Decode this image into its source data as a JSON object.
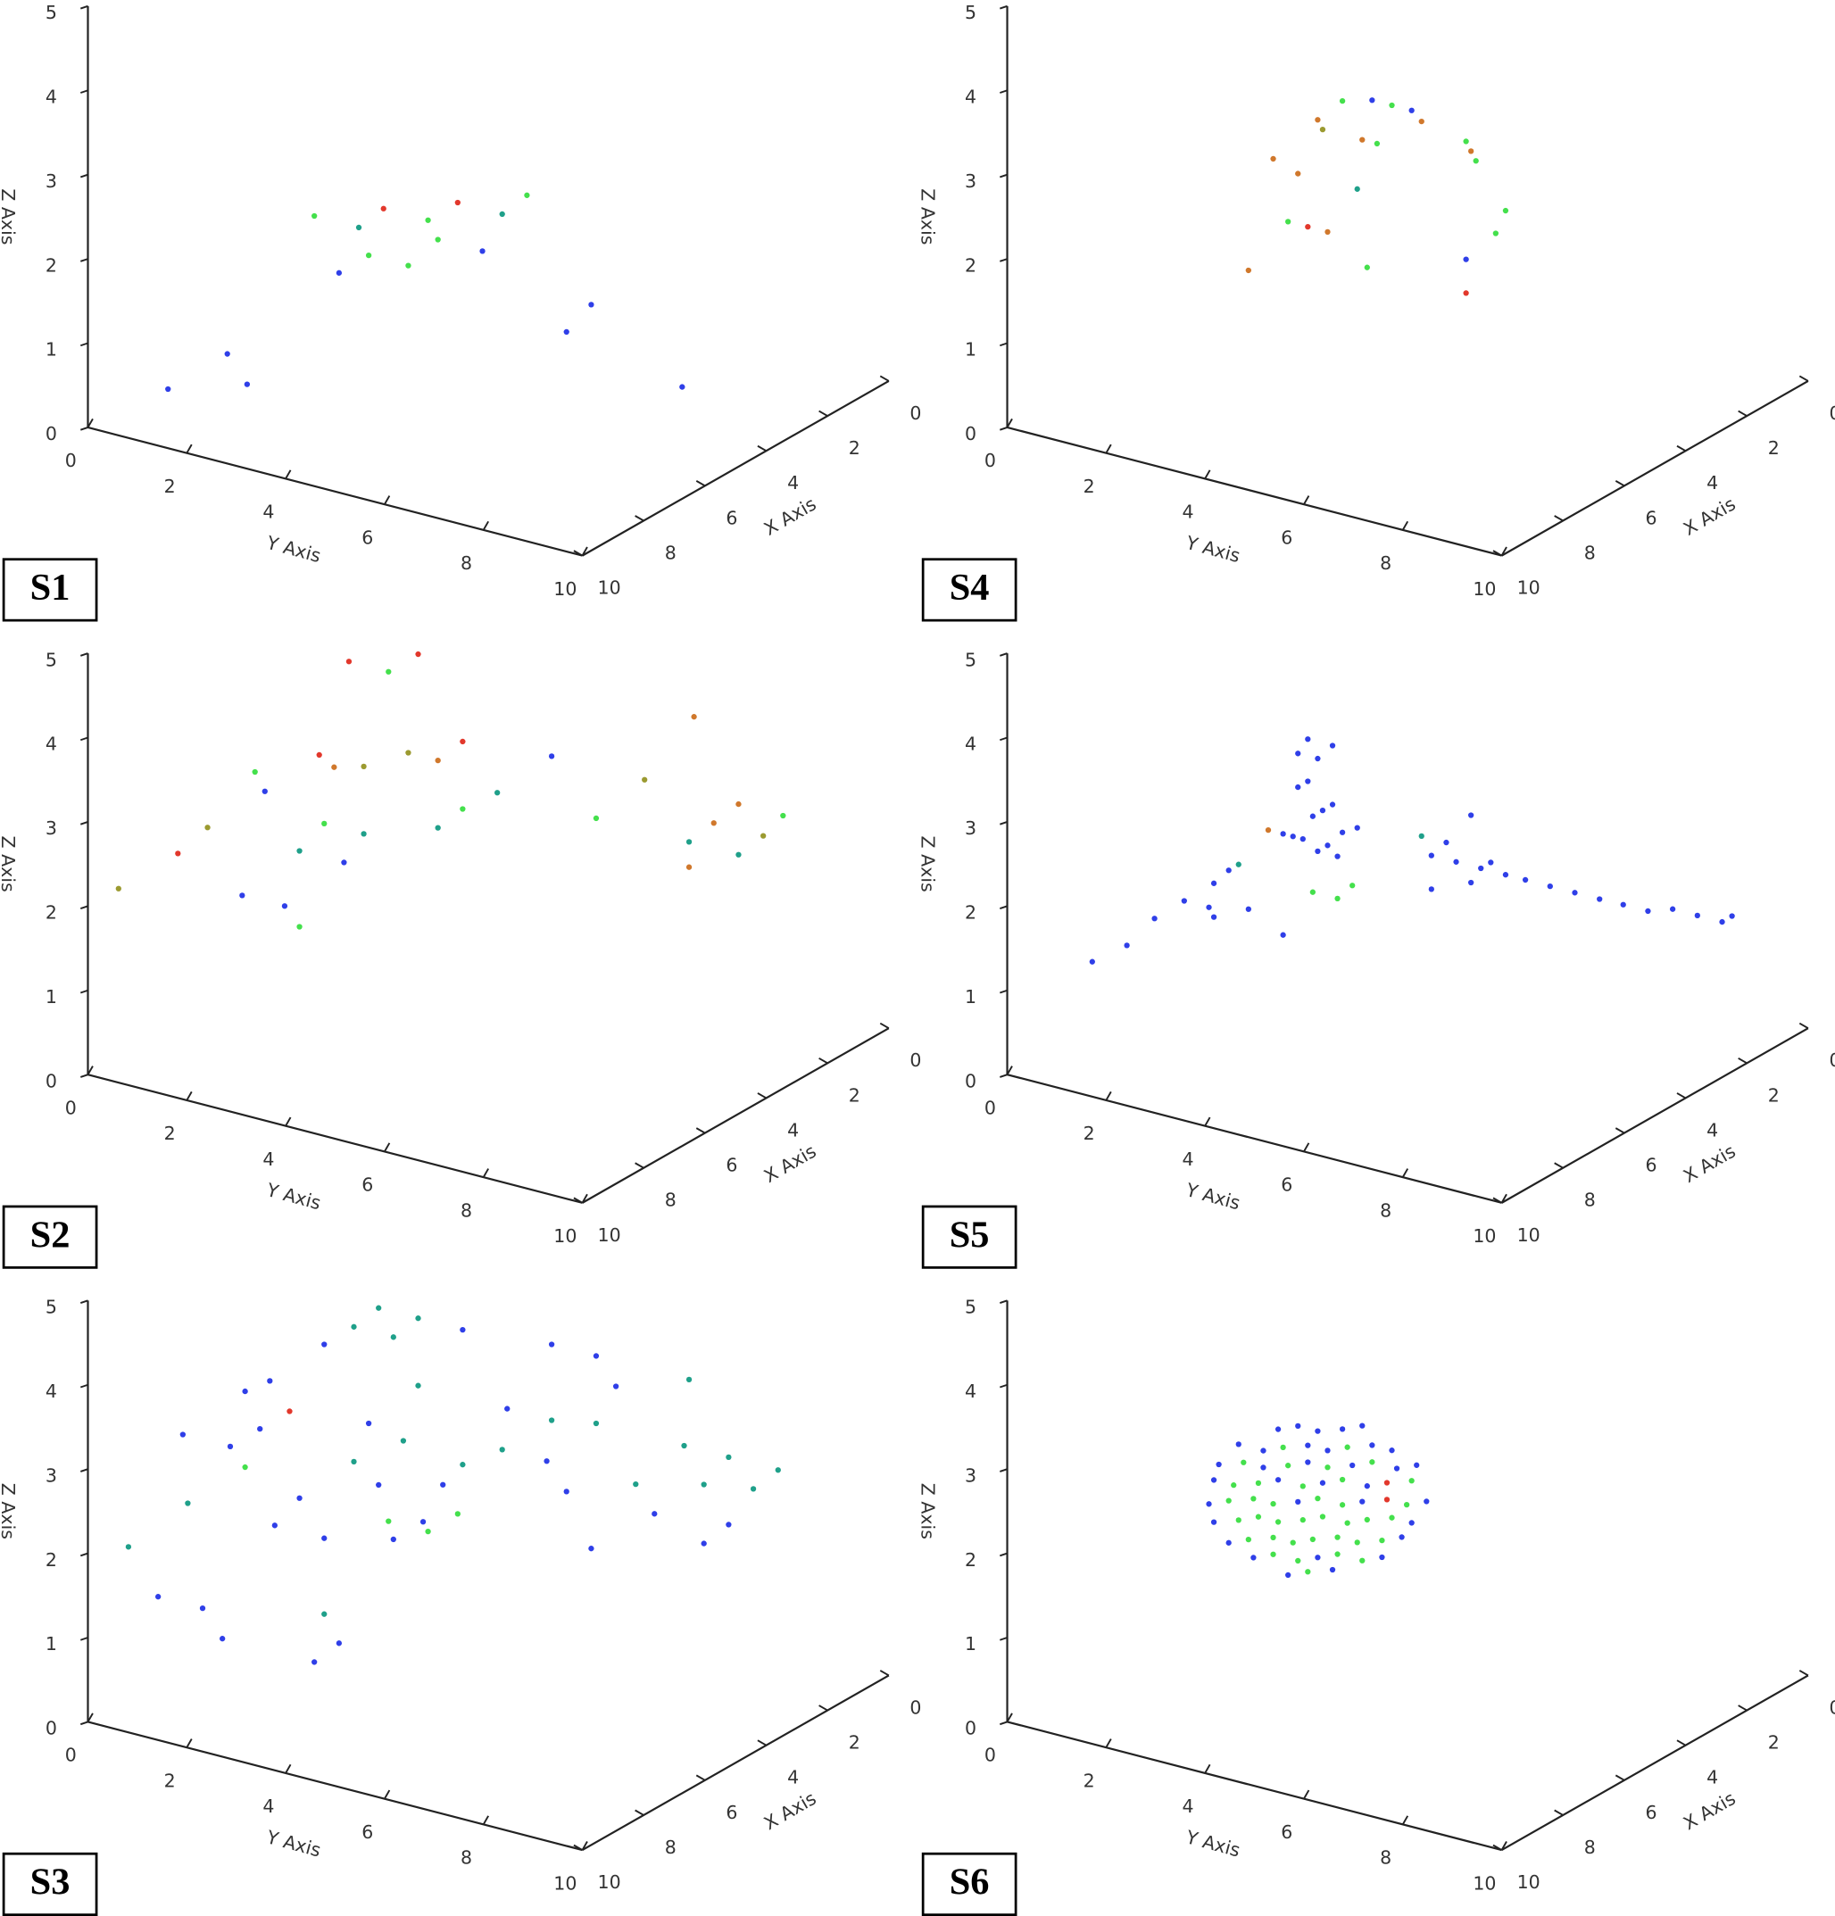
{
  "chart_data": [
    {
      "type": "scatter3d",
      "label": "S1",
      "xlabel": "X Axis",
      "ylabel": "Y Axis",
      "zlabel": "Z Axis",
      "xlim": [
        0,
        10
      ],
      "ylim": [
        0,
        10
      ],
      "zlim": [
        0,
        5
      ],
      "xticks": [
        0,
        2,
        4,
        6,
        8,
        10
      ],
      "yticks": [
        0,
        2,
        4,
        6,
        8,
        10
      ],
      "zticks": [
        0,
        1,
        2,
        3,
        4,
        5
      ],
      "series": [
        {
          "color": "#2f3fe8",
          "x": [
            9,
            9,
            9,
            6,
            6,
            6,
            6,
            4
          ],
          "y": [
            1.0,
            2.2,
            2.6,
            2.6,
            5.5,
            7.2,
            7.7,
            8.3
          ],
          "z": [
            0.4,
            1.0,
            0.7,
            1.4,
            2.1,
            1.4,
            1.8,
            0.5
          ]
        },
        {
          "color": "#44e04c",
          "x": [
            6,
            6,
            6,
            6,
            6,
            6
          ],
          "y": [
            2.1,
            3.2,
            4.0,
            4.4,
            4.6,
            6.4
          ],
          "z": [
            2.0,
            1.7,
            1.7,
            2.3,
            2.1,
            2.9
          ]
        },
        {
          "color": "#1fa08a",
          "x": [
            6,
            6
          ],
          "y": [
            3.0,
            5.9
          ],
          "z": [
            2.0,
            2.6
          ]
        },
        {
          "color": "#e2382c",
          "x": [
            6,
            6
          ],
          "y": [
            3.5,
            5.0
          ],
          "z": [
            2.3,
            2.6
          ]
        }
      ]
    },
    {
      "type": "scatter3d",
      "label": "S4",
      "xlabel": "X Axis",
      "ylabel": "Y Axis",
      "zlabel": "Z Axis",
      "xlim": [
        0,
        10
      ],
      "ylim": [
        0,
        10
      ],
      "zlim": [
        0,
        5
      ],
      "xticks": [
        0,
        2,
        4,
        6,
        8,
        10
      ],
      "yticks": [
        0,
        2,
        4,
        6,
        8,
        10
      ],
      "zticks": [
        0,
        1,
        2,
        3,
        4,
        5
      ],
      "series": [
        {
          "color": "#d0782c",
          "x": [
            6,
            6,
            6,
            6,
            6,
            6,
            6,
            6
          ],
          "y": [
            2.4,
            2.9,
            3.4,
            3.8,
            4.0,
            4.7,
            5.9,
            6.9
          ],
          "z": [
            1.4,
            2.8,
            2.7,
            3.4,
            2.1,
            3.3,
            3.7,
            3.5
          ]
        },
        {
          "color": "#9b9a30",
          "x": [
            6
          ],
          "y": [
            3.9
          ],
          "z": [
            3.3
          ]
        },
        {
          "color": "#44e04c",
          "x": [
            6,
            6,
            6,
            6,
            6,
            6,
            6,
            6,
            6
          ],
          "y": [
            3.2,
            4.3,
            4.8,
            5.0,
            5.3,
            6.8,
            7.0,
            7.4,
            7.6
          ],
          "z": [
            2.1,
            3.7,
            1.8,
            3.3,
            3.8,
            3.6,
            3.4,
            2.6,
            2.9
          ]
        },
        {
          "color": "#2f3fe8",
          "x": [
            6,
            6,
            6
          ],
          "y": [
            4.9,
            5.7,
            6.8
          ],
          "z": [
            3.8,
            3.8,
            2.2
          ]
        },
        {
          "color": "#1fa08a",
          "x": [
            6
          ],
          "y": [
            4.6
          ],
          "z": [
            2.7
          ]
        },
        {
          "color": "#e2382c",
          "x": [
            6,
            6
          ],
          "y": [
            3.6,
            6.8
          ],
          "z": [
            2.1,
            1.8
          ]
        }
      ]
    },
    {
      "type": "scatter3d",
      "label": "S2",
      "xlabel": "X Axis",
      "ylabel": "Y Axis",
      "zlabel": "Z Axis",
      "xlim": [
        0,
        10
      ],
      "ylim": [
        0,
        10
      ],
      "zlim": [
        0,
        5
      ],
      "xticks": [
        0,
        2,
        4,
        6,
        8,
        10
      ],
      "yticks": [
        0,
        2,
        4,
        6,
        8,
        10
      ],
      "zticks": [
        0,
        1,
        2,
        3,
        4,
        5
      ],
      "series": [
        {
          "color": "#9b9a30",
          "x": [
            9,
            9,
            6,
            6,
            2,
            2
          ],
          "y": [
            0.0,
            1.8,
            3.1,
            4.0,
            6.3,
            8.7
          ],
          "z": [
            2.0,
            3.0,
            3.3,
            3.6,
            2.8,
            2.5
          ]
        },
        {
          "color": "#e2382c",
          "x": [
            9,
            6,
            6,
            6,
            6
          ],
          "y": [
            1.2,
            2.2,
            2.8,
            4.2,
            5.1
          ],
          "z": [
            2.6,
            3.3,
            4.5,
            4.8,
            3.9
          ]
        },
        {
          "color": "#2f3fe8",
          "x": [
            9,
            6,
            6,
            6,
            6
          ],
          "y": [
            2.5,
            1.1,
            1.5,
            2.7,
            6.9
          ],
          "z": [
            2.3,
            2.7,
            1.4,
            2.1,
            4.0
          ]
        },
        {
          "color": "#44e04c",
          "x": [
            6,
            6,
            6,
            6,
            6,
            6,
            2
          ],
          "y": [
            0.9,
            1.8,
            2.3,
            3.6,
            5.1,
            7.8,
            9.1
          ],
          "z": [
            2.9,
            1.2,
            2.5,
            4.5,
            3.1,
            3.4,
            2.8
          ]
        },
        {
          "color": "#1fa08a",
          "x": [
            6,
            6,
            6,
            6,
            2,
            2
          ],
          "y": [
            1.8,
            3.1,
            4.6,
            5.8,
            7.2,
            8.2
          ],
          "z": [
            2.1,
            2.5,
            2.8,
            3.4,
            2.2,
            2.2
          ]
        },
        {
          "color": "#d0782c",
          "x": [
            6,
            6,
            2,
            2,
            2,
            2
          ],
          "y": [
            2.5,
            4.6,
            7.2,
            7.3,
            7.7,
            8.2
          ],
          "z": [
            3.2,
            3.6,
            1.9,
            3.7,
            2.5,
            2.8
          ]
        }
      ]
    },
    {
      "type": "scatter3d",
      "label": "S5",
      "xlabel": "X Axis",
      "ylabel": "Y Axis",
      "zlabel": "Z Axis",
      "xlim": [
        0,
        10
      ],
      "ylim": [
        0,
        10
      ],
      "zlim": [
        0,
        5
      ],
      "xticks": [
        0,
        2,
        4,
        6,
        8,
        10
      ],
      "yticks": [
        0,
        2,
        4,
        6,
        8,
        10
      ],
      "zticks": [
        0,
        1,
        2,
        3,
        4,
        5
      ],
      "series": [
        {
          "color": "#2f3fe8",
          "x": [
            9,
            9,
            6,
            6,
            6,
            6,
            6,
            6,
            6,
            6,
            6,
            6,
            6,
            6,
            6,
            6,
            6,
            6,
            6,
            6,
            6,
            6,
            6,
            6,
            6,
            6,
            6,
            6,
            6,
            6,
            6,
            6,
            6,
            6,
            6,
            6,
            6,
            6,
            6,
            6,
            2,
            2,
            2,
            2,
            2,
            2
          ],
          "y": [
            1.1,
            1.8,
            0.5,
            1.1,
            1.6,
            1.7,
            1.7,
            2.0,
            2.4,
            3.1,
            3.1,
            3.3,
            3.4,
            3.5,
            3.6,
            3.8,
            3.7,
            3.9,
            4.1,
            3.4,
            3.6,
            3.8,
            4.0,
            4.2,
            4.3,
            4.6,
            4.1,
            6.1,
            6.1,
            6.4,
            6.6,
            6.9,
            6.9,
            7.1,
            7.3,
            7.6,
            8.0,
            8.5,
            9.0,
            9.5,
            7.5,
            8.0,
            8.5,
            9.0,
            9.5,
            9.7
          ],
          "z": [
            1.3,
            1.6,
            1.1,
            1.4,
            1.4,
            1.3,
            1.7,
            1.9,
            1.5,
            1.3,
            2.5,
            2.5,
            3.5,
            2.5,
            3.7,
            3.5,
            2.8,
            2.9,
            3.7,
            3.1,
            3.2,
            2.4,
            2.5,
            2.4,
            2.7,
            2.8,
            3.0,
            2.3,
            2.7,
            2.9,
            2.7,
            3.3,
            2.5,
            2.7,
            2.8,
            2.7,
            2.7,
            2.7,
            2.7,
            2.7,
            1.5,
            1.5,
            1.6,
            1.6,
            1.6,
            1.7
          ]
        },
        {
          "color": "#1fa08a",
          "x": [
            6,
            6
          ],
          "y": [
            2.2,
            5.9
          ],
          "z": [
            2.0,
            2.9
          ]
        },
        {
          "color": "#d0782c",
          "x": [
            6
          ],
          "y": [
            2.8
          ],
          "z": [
            2.5
          ]
        },
        {
          "color": "#44e04c",
          "x": [
            6,
            6,
            6
          ],
          "y": [
            3.7,
            4.2,
            4.5
          ],
          "z": [
            1.9,
            1.9,
            2.1
          ]
        }
      ]
    },
    {
      "type": "scatter3d",
      "label": "S3",
      "xlabel": "X Axis",
      "ylabel": "Y Axis",
      "zlabel": "Z Axis",
      "xlim": [
        0,
        10
      ],
      "ylim": [
        0,
        10
      ],
      "zlim": [
        0,
        5
      ],
      "xticks": [
        0,
        2,
        4,
        6,
        8,
        10
      ],
      "yticks": [
        0,
        2,
        4,
        6,
        8,
        10
      ],
      "zticks": [
        0,
        1,
        2,
        3,
        4,
        5
      ],
      "series": [
        {
          "color": "#1fa08a",
          "x": [
            9,
            9,
            6,
            6,
            6,
            6,
            6,
            6,
            6,
            6,
            6,
            6,
            6,
            6,
            6,
            2,
            2,
            2,
            2,
            2,
            2
          ],
          "y": [
            0.2,
            1.4,
            2.3,
            2.9,
            2.9,
            3.4,
            3.7,
            3.9,
            4.2,
            4.2,
            5.1,
            5.9,
            8.6,
            7.8,
            6.9,
            7.1,
            7.2,
            7.5,
            8.0,
            8.5,
            9.0
          ],
          "z": [
            1.9,
            2.6,
            0.8,
            4.3,
            2.7,
            4.6,
            4.3,
            3.1,
            4.6,
            3.8,
            3.0,
            3.3,
            3.3,
            3.9,
            3.8,
            2.7,
            3.5,
            2.3,
            2.7,
            2.4,
            2.7
          ]
        },
        {
          "color": "#2f3fe8",
          "x": [
            9,
            9,
            9,
            9,
            6,
            6,
            6,
            6,
            6,
            6,
            6,
            6,
            6,
            6,
            6,
            6,
            6,
            6,
            6,
            6,
            6,
            6,
            6,
            6,
            6,
            6,
            6,
            2,
            2,
            2
          ],
          "y": [
            0.8,
            1.3,
            1.7,
            2.1,
            0.4,
            0.7,
            1.0,
            1.2,
            1.3,
            1.8,
            2.1,
            2.3,
            2.3,
            2.6,
            3.2,
            3.4,
            3.7,
            4.3,
            4.7,
            5.1,
            6.0,
            6.9,
            6.8,
            7.2,
            7.8,
            7.7,
            8.2,
            6.5,
            7.5,
            8.0
          ],
          "z": [
            1.4,
            3.4,
            1.4,
            1.1,
            2.5,
            3.2,
            2.8,
            3.4,
            1.7,
            2.1,
            0.2,
            1.7,
            4.0,
            0.5,
            3.2,
            2.5,
            1.9,
            2.2,
            2.7,
            4.6,
            3.8,
            4.7,
            3.3,
            3.0,
            4.7,
            2.4,
            4.4,
            1.8,
            1.6,
            1.9
          ]
        },
        {
          "color": "#44e04c",
          "x": [
            6,
            6,
            6,
            6
          ],
          "y": [
            0.7,
            3.6,
            4.4,
            5.0
          ],
          "z": [
            2.3,
            2.1,
            2.1,
            2.4
          ]
        },
        {
          "color": "#e2382c",
          "x": [
            6
          ],
          "y": [
            1.6
          ],
          "z": [
            3.1
          ]
        }
      ]
    },
    {
      "type": "scatter3d",
      "label": "S6",
      "xlabel": "X Axis",
      "ylabel": "Y Axis",
      "zlabel": "Z Axis",
      "xlim": [
        0,
        10
      ],
      "ylim": [
        0,
        10
      ],
      "zlim": [
        0,
        5
      ],
      "xticks": [
        0,
        2,
        4,
        6,
        8,
        10
      ],
      "yticks": [
        0,
        2,
        4,
        6,
        8,
        10
      ],
      "zticks": [
        0,
        1,
        2,
        3,
        4,
        5
      ],
      "series": [
        {
          "color": "#2f3fe8",
          "x": [
            6,
            6,
            6,
            6,
            6,
            6,
            6,
            6,
            6,
            6,
            6,
            6,
            6,
            6,
            6,
            6,
            6,
            6,
            6,
            6,
            6,
            6,
            6,
            6,
            6,
            6,
            6,
            6,
            6,
            6,
            6,
            6,
            6,
            6
          ],
          "y": [
            3.0,
            3.4,
            3.8,
            4.3,
            4.7,
            2.2,
            2.7,
            3.6,
            4.0,
            4.9,
            5.3,
            1.8,
            2.7,
            3.6,
            4.5,
            5.4,
            5.8,
            1.7,
            3.0,
            3.9,
            4.8,
            1.6,
            3.4,
            4.7,
            6.0,
            1.7,
            5.7,
            2.0,
            5.5,
            2.5,
            3.8,
            5.1,
            3.2,
            4.1
          ],
          "z": [
            3.1,
            3.2,
            3.2,
            3.3,
            3.4,
            2.8,
            2.8,
            3.0,
            3.0,
            3.2,
            3.2,
            2.5,
            2.6,
            2.8,
            2.9,
            3.0,
            3.1,
            2.3,
            2.5,
            2.6,
            2.7,
            2.0,
            2.3,
            2.5,
            2.7,
            1.8,
            2.4,
            1.6,
            2.2,
            1.5,
            1.7,
            1.9,
            1.4,
            1.6
          ]
        },
        {
          "color": "#44e04c",
          "x": [
            6,
            6,
            6,
            6,
            6,
            6,
            6,
            6,
            6,
            6,
            6,
            6,
            6,
            6,
            6,
            6,
            6,
            6,
            6,
            6,
            6,
            6,
            6,
            6,
            6,
            6,
            6,
            6,
            6,
            6,
            6,
            6,
            6,
            6,
            6,
            6,
            6
          ],
          "y": [
            3.1,
            4.4,
            2.3,
            3.2,
            4.0,
            4.9,
            2.1,
            2.6,
            3.5,
            4.3,
            5.7,
            2.0,
            2.5,
            2.9,
            3.8,
            4.3,
            5.6,
            2.2,
            2.6,
            3.0,
            3.5,
            3.9,
            4.4,
            4.8,
            5.3,
            2.4,
            2.9,
            3.3,
            3.7,
            4.2,
            4.6,
            5.1,
            2.9,
            3.4,
            4.2,
            4.7,
            3.6
          ],
          "z": [
            2.9,
            3.1,
            2.6,
            2.7,
            2.8,
            3.0,
            2.3,
            2.4,
            2.5,
            2.7,
            2.9,
            2.1,
            2.2,
            2.2,
            2.4,
            2.4,
            2.6,
            1.9,
            2.0,
            2.0,
            2.1,
            2.2,
            2.2,
            2.3,
            2.4,
            1.7,
            1.8,
            1.8,
            1.9,
            2.0,
            2.0,
            2.1,
            1.6,
            1.6,
            1.8,
            1.8,
            1.5
          ]
        },
        {
          "color": "#e2382c",
          "x": [
            6,
            6
          ],
          "y": [
            5.2,
            5.2
          ],
          "z": [
            2.8,
            2.6
          ]
        }
      ]
    }
  ]
}
